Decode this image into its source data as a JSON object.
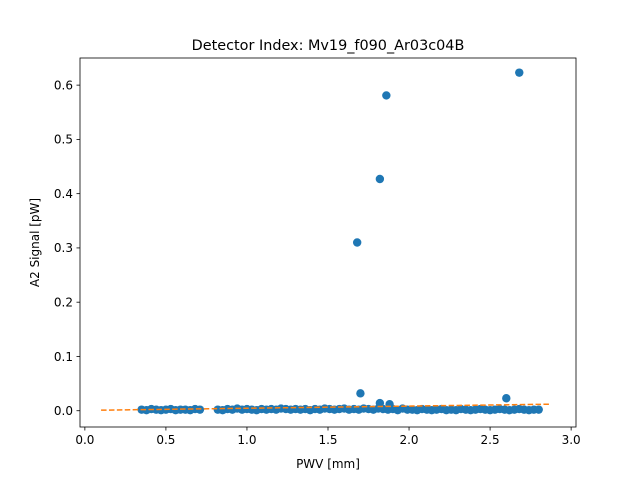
{
  "chart_data": {
    "type": "scatter",
    "title": "Detector Index: Mv19_f090_Ar03c04B",
    "xlabel": "PWV [mm]",
    "ylabel": "A2 Signal [pW]",
    "xlim": [
      -0.03,
      3.03
    ],
    "ylim": [
      -0.03,
      0.65
    ],
    "xticks": [
      0.0,
      0.5,
      1.0,
      1.5,
      2.0,
      2.5,
      3.0
    ],
    "xtick_labels": [
      "0.0",
      "0.5",
      "1.0",
      "1.5",
      "2.0",
      "2.5",
      "3.0"
    ],
    "yticks": [
      0.0,
      0.1,
      0.2,
      0.3,
      0.4,
      0.5,
      0.6
    ],
    "ytick_labels": [
      "0.0",
      "0.1",
      "0.2",
      "0.3",
      "0.4",
      "0.5",
      "0.6"
    ],
    "grid": false,
    "colors": {
      "points": "#1f77b4",
      "fit": "#ff7f0e"
    },
    "series": [
      {
        "kind": "points",
        "x": [
          0.35,
          0.38,
          0.41,
          0.44,
          0.47,
          0.5,
          0.53,
          0.56,
          0.59,
          0.62,
          0.65,
          0.68,
          0.71,
          0.82,
          0.85,
          0.88,
          0.91,
          0.94,
          0.97,
          1.0,
          1.03,
          1.06,
          1.09,
          1.12,
          1.15,
          1.18,
          1.21,
          1.24,
          1.27,
          1.3,
          1.33,
          1.36,
          1.39,
          1.42,
          1.45,
          1.48,
          1.51,
          1.54,
          1.57,
          1.6,
          1.63,
          1.66,
          1.69,
          1.72,
          1.75,
          1.78,
          1.81,
          1.84,
          1.87,
          1.9,
          1.93,
          1.96,
          1.99,
          2.02,
          2.05,
          2.08,
          2.11,
          2.14,
          2.17,
          2.2,
          2.23,
          2.26,
          2.29,
          2.32,
          2.35,
          2.38,
          2.41,
          2.44,
          2.47,
          2.5,
          2.53,
          2.56,
          2.59,
          2.62,
          2.65,
          2.68,
          2.71,
          2.74,
          2.77,
          2.8,
          1.68,
          1.7,
          1.82,
          1.86,
          1.82,
          1.88,
          2.6,
          2.68
        ],
        "y": [
          0.002,
          0.001,
          0.003,
          0.002,
          0.001,
          0.002,
          0.003,
          0.001,
          0.002,
          0.002,
          0.001,
          0.003,
          0.002,
          0.002,
          0.001,
          0.003,
          0.002,
          0.004,
          0.002,
          0.003,
          0.002,
          0.001,
          0.003,
          0.002,
          0.003,
          0.002,
          0.004,
          0.003,
          0.002,
          0.003,
          0.002,
          0.003,
          0.001,
          0.003,
          0.002,
          0.004,
          0.003,
          0.002,
          0.003,
          0.004,
          0.002,
          0.003,
          0.002,
          0.004,
          0.003,
          0.002,
          0.004,
          0.003,
          0.002,
          0.003,
          0.001,
          0.004,
          0.002,
          0.002,
          0.001,
          0.003,
          0.002,
          0.001,
          0.002,
          0.003,
          0.001,
          0.002,
          0.001,
          0.003,
          0.002,
          0.001,
          0.002,
          0.003,
          0.002,
          0.001,
          0.002,
          0.003,
          0.002,
          0.001,
          0.002,
          0.003,
          0.002,
          0.001,
          0.002,
          0.002,
          0.31,
          0.032,
          0.427,
          0.581,
          0.014,
          0.012,
          0.023,
          0.623
        ]
      },
      {
        "kind": "fit",
        "x": [
          0.1,
          2.87
        ],
        "y": [
          0.001,
          0.012
        ]
      }
    ]
  }
}
